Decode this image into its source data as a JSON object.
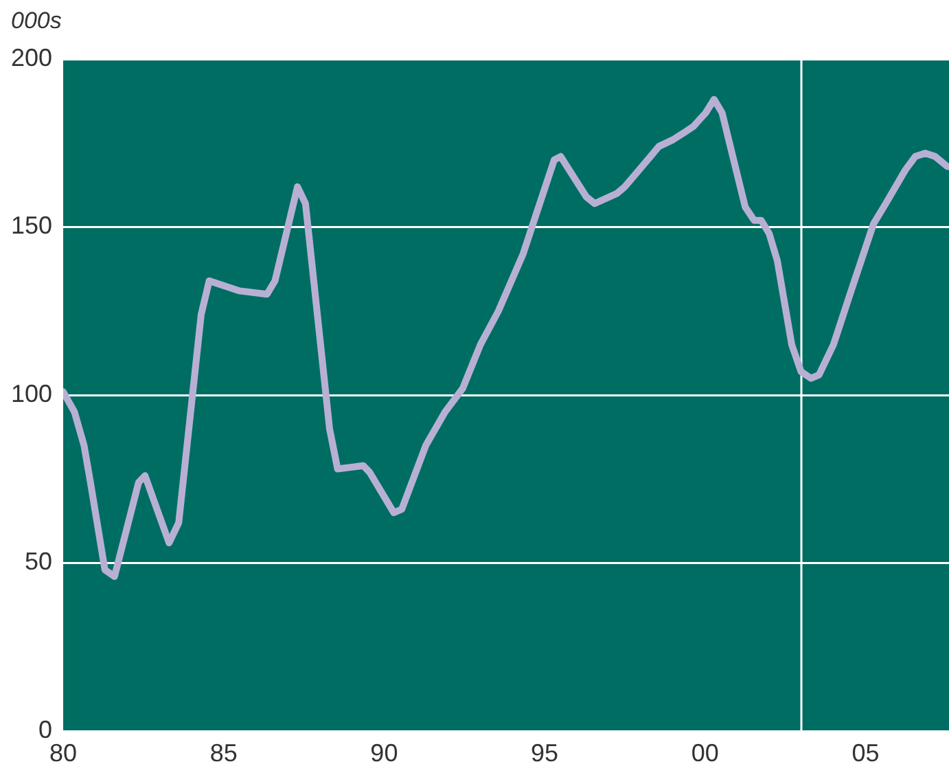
{
  "chart_data": {
    "type": "line",
    "ylabel": "000s",
    "x": [
      1980.0,
      1980.35,
      1980.65,
      1980.85,
      1981.3,
      1981.6,
      1982.35,
      1982.55,
      1983.3,
      1983.6,
      1984.3,
      1984.55,
      1985.5,
      1986.35,
      1986.6,
      1987.3,
      1987.55,
      1988.3,
      1988.55,
      1989.35,
      1989.55,
      1990.3,
      1990.55,
      1991.3,
      1991.9,
      1992.45,
      1993.0,
      1993.56,
      1994.33,
      1994.64,
      1995.3,
      1995.5,
      1996.3,
      1996.56,
      1997.25,
      1997.5,
      1998.3,
      1998.56,
      1999.0,
      1999.33,
      1999.64,
      2000.02,
      2000.28,
      2000.53,
      2001.25,
      2001.53,
      2001.75,
      2002.0,
      2002.25,
      2002.7,
      2002.99,
      2003.3,
      2003.55,
      2004.0,
      2004.55,
      2005.25,
      2005.63,
      2006.24,
      2006.55,
      2006.86,
      2007.17,
      2007.55
    ],
    "series": [
      {
        "color": "#b8b0d4",
        "values": [
          101,
          95,
          85,
          74,
          48,
          46,
          74,
          76,
          56,
          62,
          124,
          134,
          131,
          130,
          134,
          162,
          157,
          90,
          78,
          79,
          77,
          65,
          66,
          85,
          95,
          102,
          115,
          125,
          142,
          151,
          170,
          171,
          159,
          157,
          160,
          162,
          171,
          174,
          176,
          178,
          180,
          184,
          188,
          184,
          156,
          152,
          152,
          148,
          140,
          115,
          107,
          105,
          106,
          115,
          131,
          151,
          157,
          167,
          171,
          172,
          171,
          168
        ]
      }
    ],
    "xlim": [
      1980,
      2007.6
    ],
    "ylim": [
      0,
      200
    ],
    "xticks": [
      {
        "value": 1980,
        "label": "80"
      },
      {
        "value": 1985,
        "label": "85"
      },
      {
        "value": 1990,
        "label": "90"
      },
      {
        "value": 1995,
        "label": "95"
      },
      {
        "value": 2000,
        "label": "00"
      },
      {
        "value": 2005,
        "label": "05"
      }
    ],
    "yticks": [
      0,
      50,
      100,
      150,
      200
    ],
    "grid": "y",
    "legend": false,
    "marker": "none",
    "line_style": "solid",
    "ref_lines": [
      {
        "axis": "x",
        "value": 2003,
        "color": "#ffffff"
      }
    ]
  }
}
